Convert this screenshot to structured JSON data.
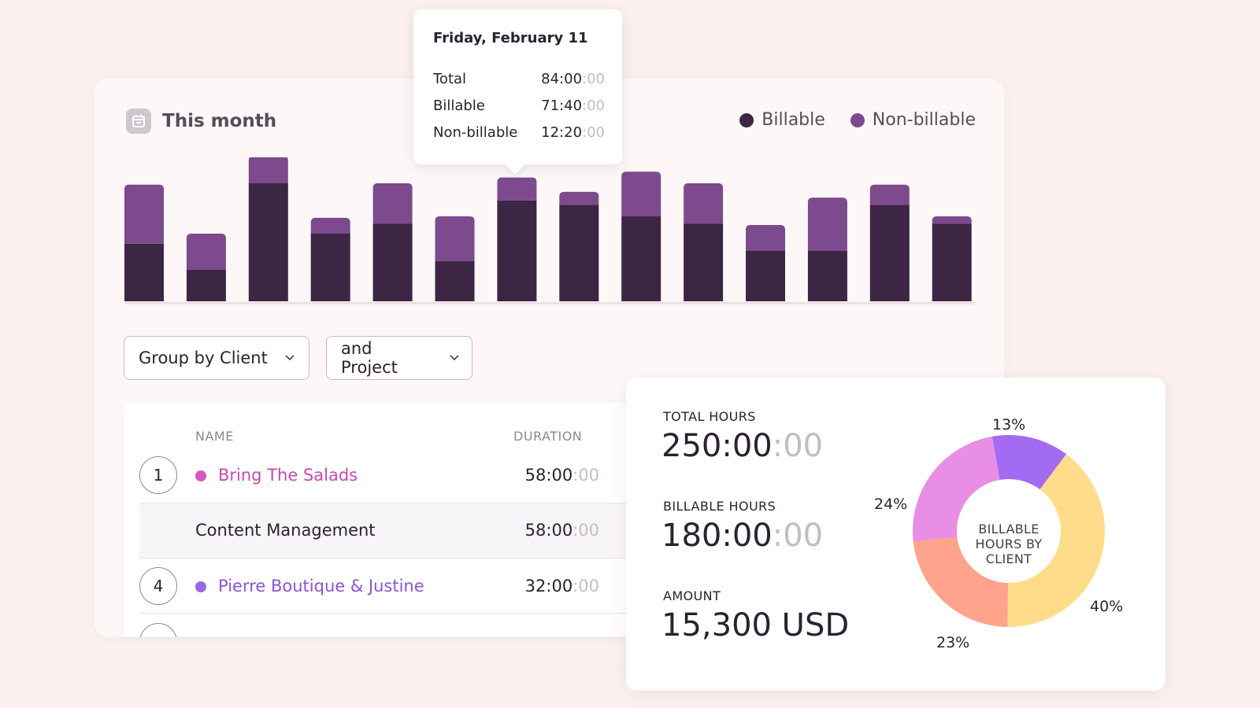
{
  "header": {
    "title": "This month",
    "calendar_icon": "calendar-icon"
  },
  "legend": [
    {
      "label": "Billable",
      "color": "#3d2544"
    },
    {
      "label": "Non-billable",
      "color": "#7d4a8e"
    }
  ],
  "colors": {
    "billable": "#3d2544",
    "non_billable": "#7d4a8e"
  },
  "chart_data": {
    "type": "bar",
    "stacked": true,
    "categories": [
      "",
      "",
      "",
      "",
      "",
      "",
      "",
      "",
      "",
      "",
      "",
      "",
      "",
      ""
    ],
    "series": [
      {
        "name": "Billable",
        "values": [
          0.4,
          0.22,
          0.82,
          0.47,
          0.54,
          0.28,
          0.7,
          0.67,
          0.59,
          0.54,
          0.35,
          0.35,
          0.67,
          0.54
        ]
      },
      {
        "name": "Non-billable",
        "values": [
          0.41,
          0.25,
          0.19,
          0.11,
          0.28,
          0.31,
          0.16,
          0.09,
          0.31,
          0.28,
          0.18,
          0.37,
          0.14,
          0.05
        ]
      }
    ],
    "grid": false,
    "legend_position": "top-right"
  },
  "filters": {
    "group_by": "Group by Client",
    "then_by": "and Project"
  },
  "table": {
    "columns": {
      "name": "NAME",
      "duration": "DURATION"
    },
    "rows": [
      {
        "num": "1",
        "name": "Bring The Salads",
        "dot_color": "#d957c2",
        "text_color": "#c648b3",
        "dur_main": "58:00",
        "dur_dim": ":00"
      },
      {
        "num": "",
        "name": "Content Management",
        "dur_main": "58:00",
        "dur_dim": ":00"
      },
      {
        "num": "4",
        "name": "Pierre Boutique & Justine",
        "dot_color": "#9b67e8",
        "text_color": "#8a55d4",
        "dur_main": "32:00",
        "dur_dim": ":00"
      }
    ]
  },
  "tooltip": {
    "title": "Friday, February 11",
    "rows": [
      {
        "label": "Total",
        "value": "84:00",
        "dim": ":00"
      },
      {
        "label": "Billable",
        "value": "71:40",
        "dim": ":00"
      },
      {
        "label": "Non-billable",
        "value": "12:20",
        "dim": ":00"
      }
    ]
  },
  "stats": {
    "total_hours": {
      "label": "TOTAL HOURS",
      "value": "250:00",
      "dim": ":00"
    },
    "billable_hours": {
      "label": "BILLABLE HOURS",
      "value": "180:00",
      "dim": ":00"
    },
    "amount": {
      "label": "AMOUNT",
      "value": "15,300 USD"
    }
  },
  "donut": {
    "center_label": "BILLABLE HOURS BY CLIENT",
    "segments": [
      {
        "value": 13,
        "label": "13%",
        "color": "#a36bf2"
      },
      {
        "value": 40,
        "label": "40%",
        "color": "#ffdc8a"
      },
      {
        "value": 23,
        "label": "23%",
        "color": "#ffa38c"
      },
      {
        "value": 24,
        "label": "24%",
        "color": "#e88ee4"
      }
    ]
  }
}
